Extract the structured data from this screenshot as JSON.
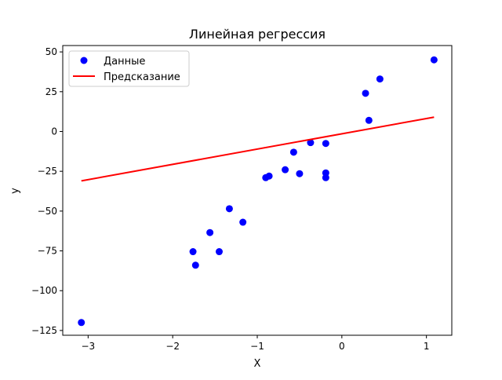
{
  "chart_data": {
    "type": "scatter",
    "title": "Линейная регрессия",
    "xlabel": "X",
    "ylabel": "y",
    "xlim": [
      -3.3,
      1.3
    ],
    "ylim": [
      -128,
      54
    ],
    "x_ticks": [
      -3,
      -2,
      -1,
      0,
      1
    ],
    "y_ticks": [
      50,
      25,
      0,
      -25,
      -50,
      -75,
      -100,
      -125
    ],
    "x_tick_labels": [
      "−3",
      "−2",
      "−1",
      "0",
      "1"
    ],
    "y_tick_labels": [
      "50",
      "25",
      "0",
      "−25",
      "−50",
      "−75",
      "−100",
      "−125"
    ],
    "legend_position": "top-left",
    "series": [
      {
        "name": "Данные",
        "kind": "scatter",
        "color": "#0000ff",
        "points": [
          [
            -3.08,
            -120
          ],
          [
            -1.76,
            -75.5
          ],
          [
            -1.73,
            -84
          ],
          [
            -1.56,
            -63.5
          ],
          [
            -1.45,
            -75.5
          ],
          [
            -1.33,
            -48.5
          ],
          [
            -1.17,
            -57
          ],
          [
            -0.9,
            -29
          ],
          [
            -0.86,
            -28
          ],
          [
            -0.67,
            -24
          ],
          [
            -0.57,
            -13
          ],
          [
            -0.5,
            -26.5
          ],
          [
            -0.37,
            -7
          ],
          [
            -0.19,
            -7.5
          ],
          [
            -0.19,
            -26
          ],
          [
            -0.19,
            -29
          ],
          [
            0.28,
            24
          ],
          [
            0.32,
            7
          ],
          [
            0.45,
            33
          ],
          [
            1.09,
            45
          ]
        ]
      },
      {
        "name": "Предсказание",
        "kind": "line",
        "color": "#ff0000",
        "points": [
          [
            -3.08,
            -31
          ],
          [
            1.09,
            9
          ]
        ]
      }
    ]
  }
}
